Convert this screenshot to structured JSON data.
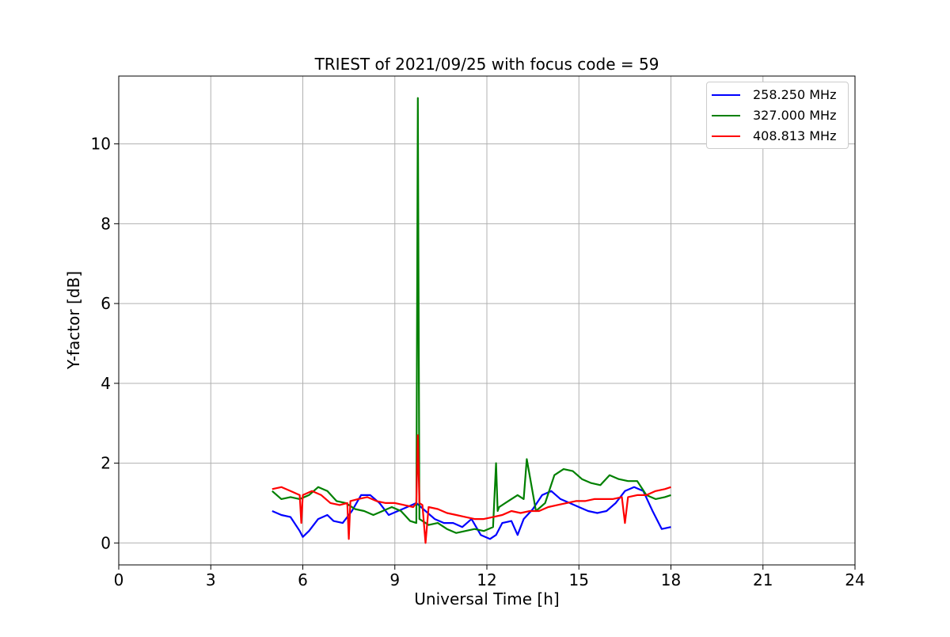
{
  "chart_data": {
    "type": "line",
    "title": "TRIEST of 2021/09/25 with focus code = 59",
    "xlabel": "Universal Time [h]",
    "ylabel": "Y-factor [dB]",
    "xlim": [
      0,
      24
    ],
    "ylim": [
      -0.55,
      11.7
    ],
    "xticks": [
      0,
      3,
      6,
      9,
      12,
      15,
      18,
      21,
      24
    ],
    "yticks": [
      0,
      2,
      4,
      6,
      8,
      10
    ],
    "grid": true,
    "legend_position": "top-right",
    "series": [
      {
        "name": "258.250 MHz",
        "color": "#0000ff",
        "x": [
          5.0,
          5.3,
          5.6,
          5.9,
          6.0,
          6.2,
          6.5,
          6.8,
          7.0,
          7.3,
          7.6,
          7.9,
          8.2,
          8.5,
          8.8,
          9.1,
          9.4,
          9.7,
          10.0,
          10.3,
          10.6,
          10.9,
          11.2,
          11.5,
          11.8,
          12.1,
          12.3,
          12.5,
          12.8,
          13.0,
          13.2,
          13.5,
          13.8,
          14.1,
          14.4,
          14.7,
          15.0,
          15.3,
          15.6,
          15.9,
          16.2,
          16.5,
          16.8,
          17.1,
          17.4,
          17.7,
          18.0
        ],
        "y": [
          0.8,
          0.7,
          0.65,
          0.3,
          0.15,
          0.3,
          0.6,
          0.7,
          0.55,
          0.5,
          0.8,
          1.2,
          1.2,
          1.0,
          0.7,
          0.8,
          0.9,
          1.0,
          0.8,
          0.6,
          0.5,
          0.5,
          0.4,
          0.6,
          0.2,
          0.1,
          0.2,
          0.5,
          0.55,
          0.2,
          0.6,
          0.85,
          1.2,
          1.3,
          1.1,
          1.0,
          0.9,
          0.8,
          0.75,
          0.8,
          1.0,
          1.3,
          1.4,
          1.3,
          0.8,
          0.35,
          0.4
        ]
      },
      {
        "name": "327.000 MHz",
        "color": "#008000",
        "x": [
          5.0,
          5.3,
          5.6,
          5.9,
          6.2,
          6.5,
          6.8,
          7.1,
          7.4,
          7.7,
          8.0,
          8.3,
          8.6,
          8.9,
          9.2,
          9.5,
          9.7,
          9.75,
          9.8,
          10.1,
          10.4,
          10.7,
          11.0,
          11.3,
          11.6,
          11.9,
          12.2,
          12.3,
          12.35,
          12.4,
          12.7,
          13.0,
          13.2,
          13.3,
          13.6,
          13.9,
          14.2,
          14.5,
          14.8,
          15.1,
          15.4,
          15.7,
          16.0,
          16.3,
          16.6,
          16.9,
          17.2,
          17.5,
          17.8,
          18.0
        ],
        "y": [
          1.3,
          1.1,
          1.15,
          1.1,
          1.2,
          1.4,
          1.3,
          1.05,
          1.0,
          0.85,
          0.8,
          0.7,
          0.8,
          0.9,
          0.8,
          0.55,
          0.5,
          11.15,
          0.6,
          0.45,
          0.5,
          0.35,
          0.25,
          0.3,
          0.35,
          0.3,
          0.4,
          2.0,
          0.8,
          0.9,
          1.05,
          1.2,
          1.1,
          2.1,
          0.8,
          1.0,
          1.7,
          1.85,
          1.8,
          1.6,
          1.5,
          1.45,
          1.7,
          1.6,
          1.55,
          1.55,
          1.2,
          1.1,
          1.15,
          1.2
        ]
      },
      {
        "name": "408.813 MHz",
        "color": "#ff0000",
        "x": [
          5.0,
          5.3,
          5.6,
          5.9,
          5.95,
          6.0,
          6.3,
          6.6,
          6.9,
          7.2,
          7.45,
          7.5,
          7.55,
          7.8,
          8.1,
          8.4,
          8.7,
          9.0,
          9.3,
          9.6,
          9.7,
          9.75,
          9.8,
          9.9,
          10.0,
          10.1,
          10.4,
          10.7,
          11.0,
          11.3,
          11.6,
          11.9,
          12.2,
          12.5,
          12.8,
          13.1,
          13.4,
          13.7,
          14.0,
          14.3,
          14.6,
          14.9,
          15.2,
          15.5,
          15.8,
          16.1,
          16.4,
          16.5,
          16.6,
          16.9,
          17.2,
          17.5,
          17.8,
          18.0
        ],
        "y": [
          1.35,
          1.4,
          1.3,
          1.2,
          0.5,
          1.2,
          1.3,
          1.2,
          1.0,
          0.95,
          1.0,
          0.1,
          1.05,
          1.1,
          1.15,
          1.05,
          1.0,
          1.0,
          0.95,
          0.9,
          1.0,
          2.7,
          1.0,
          0.95,
          0.0,
          0.9,
          0.85,
          0.75,
          0.7,
          0.65,
          0.6,
          0.6,
          0.65,
          0.7,
          0.8,
          0.75,
          0.8,
          0.8,
          0.9,
          0.95,
          1.0,
          1.05,
          1.05,
          1.1,
          1.1,
          1.1,
          1.15,
          0.5,
          1.15,
          1.2,
          1.2,
          1.3,
          1.35,
          1.4
        ]
      }
    ]
  }
}
